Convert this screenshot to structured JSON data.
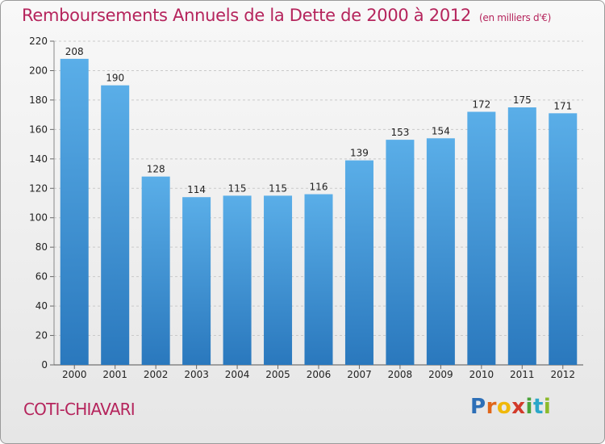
{
  "header": {
    "title": "Remboursements Annuels de la Dette de 2000 à 2012",
    "unit": "(en milliers d'€)"
  },
  "footer": {
    "entity": "COTI-CHIAVARI",
    "logo_letters": [
      "P",
      "r",
      "o",
      "x",
      "i",
      "t",
      "i"
    ],
    "logo_colors": [
      "#2d6fb7",
      "#e0661a",
      "#f0b80a",
      "#d23a2a",
      "#4aa33a",
      "#2aa7c9",
      "#8cba2a"
    ]
  },
  "chart_data": {
    "type": "bar",
    "title": "Remboursements Annuels de la Dette de 2000 à 2012",
    "unit": "(en milliers d'€)",
    "categories": [
      "2000",
      "2001",
      "2002",
      "2003",
      "2004",
      "2005",
      "2006",
      "2007",
      "2008",
      "2009",
      "2010",
      "2011",
      "2012"
    ],
    "values": [
      208,
      190,
      128,
      114,
      115,
      115,
      116,
      139,
      153,
      154,
      172,
      175,
      171
    ],
    "ylim": [
      0,
      220
    ],
    "yticks": [
      0,
      20,
      40,
      60,
      80,
      100,
      120,
      140,
      160,
      180,
      200,
      220
    ],
    "grid": true,
    "bar_color_top": "#5aaee8",
    "bar_color_bottom": "#2a78bd"
  }
}
